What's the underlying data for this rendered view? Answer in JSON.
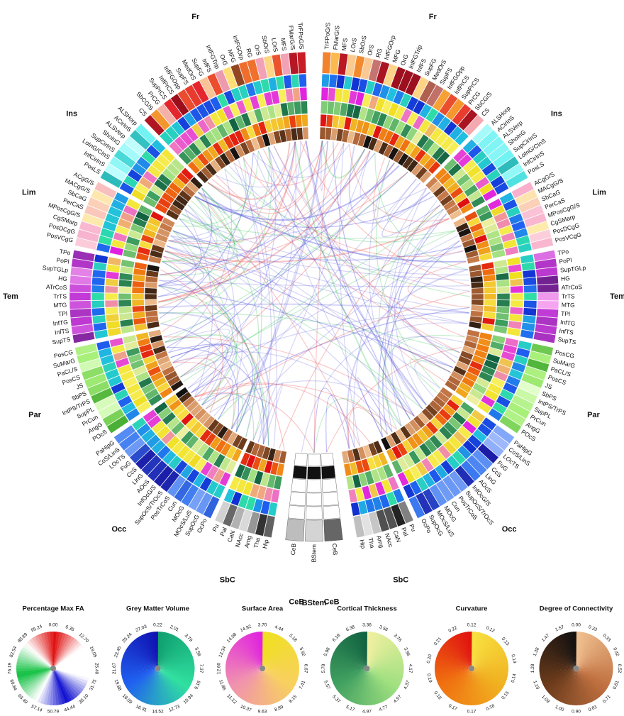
{
  "lobes": [
    {
      "label": "Fr",
      "regions": [
        "TrFPoG/S",
        "FMarG/S",
        "MFS",
        "LOrS",
        "SbOrS",
        "OrS",
        "RG",
        "InfFGOrp",
        "MFG",
        "OrG",
        "InfFGTrip",
        "InfFS",
        "SupFG",
        "MedOrS",
        "SupFS",
        "InfFGOpp",
        "InfPrCS",
        "SupPrCS",
        "PrCG",
        "SbCG/S",
        "CS"
      ]
    },
    {
      "label": "Ins",
      "regions": [
        "ALSHorp",
        "ACirInS",
        "ALSVerp",
        "ShoInG",
        "SupCirInS",
        "LoInG/CInS",
        "InfCirInS",
        "PosLS"
      ]
    },
    {
      "label": "Lim",
      "regions": [
        "ACgG/S",
        "MACgG/S",
        "SbCaG",
        "PerCaS",
        "MPosCgG/S",
        "CgSMarp",
        "PosDCgG",
        "PosVCgG"
      ]
    },
    {
      "label": "Tem",
      "regions": [
        "TPo",
        "PoPl",
        "SupTGLp",
        "HG",
        "ATrCoS",
        "TrTS",
        "MTG",
        "TPl",
        "InfTG",
        "InfTS",
        "SupTS"
      ]
    },
    {
      "label": "Par",
      "regions": [
        "PosCG",
        "SuMarG",
        "PaCL/S",
        "PosCS",
        "JS",
        "SbPS",
        "IntPS/TrPS",
        "SupPL",
        "PrCun",
        "AngG",
        "POcS"
      ]
    },
    {
      "label": "Occ",
      "regions": [
        "PaHipG",
        "CoS/LinS",
        "LOcTS",
        "FuG",
        "CcS",
        "LinG",
        "AOcS",
        "InfOcG/S",
        "SupOcS/TrOcS",
        "PosTrCoS",
        "Cun",
        "MOcG",
        "MOcS/LuS",
        "SupOcG",
        "OcPo"
      ]
    },
    {
      "label": "SbC",
      "regions": [
        "Pu",
        "Pal",
        "CaN",
        "NAcc",
        "Amg",
        "Tha",
        "Hip"
      ]
    }
  ],
  "center": [
    {
      "label": "CeB",
      "region": "CeB"
    },
    {
      "label": "BStem",
      "region": "BStem"
    },
    {
      "label": "CeB",
      "region": "CeB"
    }
  ],
  "legends": [
    {
      "title": "Percentage Max FA",
      "ticks": [
        "0.00",
        "6.35",
        "12.70",
        "19.05",
        "25.40",
        "31.75",
        "38.10",
        "44.44",
        "50.79",
        "57.14",
        "63.49",
        "69.84",
        "76.19",
        "82.54",
        "88.89",
        "95.24"
      ]
    },
    {
      "title": "Grey Matter Volume",
      "ticks": [
        "0.22",
        "2.01",
        "3.79",
        "5.58",
        "7.37",
        "9.16",
        "10.94",
        "12.73",
        "14.52",
        "16.31",
        "18.09",
        "19.88",
        "21.67",
        "23.45",
        "25.24",
        "27.03"
      ]
    },
    {
      "title": "Surface Area",
      "ticks": [
        "3.70",
        "4.44",
        "5.18",
        "5.92",
        "6.67",
        "7.41",
        "8.15",
        "8.89",
        "9.63",
        "10.37",
        "11.12",
        "11.86",
        "12.60",
        "13.34",
        "14.08",
        "14.82"
      ]
    },
    {
      "title": "Cortical Thickness",
      "ticks": [
        "3.36",
        "3.56",
        "3.76",
        "3.96",
        "4.17",
        "4.37",
        "4.57",
        "4.77",
        "4.97",
        "5.17",
        "5.37",
        "5.57",
        "5.78",
        "5.98",
        "6.18",
        "6.38"
      ]
    },
    {
      "title": "Curvature",
      "ticks": [
        "0.12",
        "0.12",
        "0.13",
        "0.14",
        "0.14",
        "0.15",
        "0.16",
        "0.17",
        "0.17",
        "0.18",
        "0.19",
        "0.20",
        "0.21",
        "0.22"
      ]
    },
    {
      "title": "Degree of Connectivity",
      "ticks": [
        "0.00",
        "0.23",
        "0.33",
        "0.42",
        "0.52",
        "0.61",
        "0.71",
        "0.81",
        "0.90",
        "1.00",
        "1.09",
        "1.19",
        "1.28",
        "1.38",
        "1.47",
        "1.57"
      ]
    }
  ]
}
